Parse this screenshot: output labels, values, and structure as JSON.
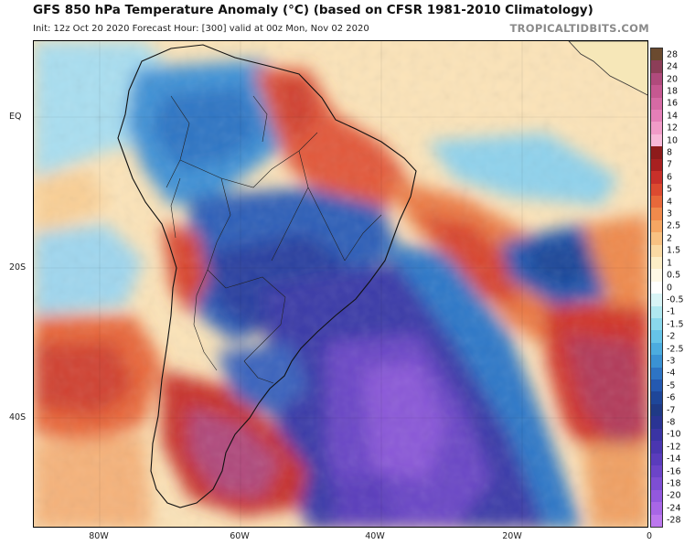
{
  "header": {
    "title": "GFS 850 hPa Temperature Anomaly (°C) (based on CFSR 1981-2010 Climatology)",
    "subtitle": "Init: 12z Oct 20 2020   Forecast Hour: [300]   valid at 00z Mon, Nov 02 2020",
    "brand": "TROPICALTIDBITS.COM"
  },
  "axes": {
    "lat_labels": [
      "EQ",
      "20S",
      "40S"
    ],
    "lon_labels": [
      "80W",
      "60W",
      "40W",
      "20W",
      "0"
    ]
  },
  "colorbar": {
    "levels": [
      "28",
      "24",
      "20",
      "18",
      "16",
      "14",
      "12",
      "10",
      "8",
      "7",
      "6",
      "5",
      "4",
      "3",
      "2.5",
      "2",
      "1.5",
      "1",
      "0.5",
      "0",
      "-0.5",
      "-1",
      "-1.5",
      "-2",
      "-2.5",
      "-3",
      "-4",
      "-5",
      "-6",
      "-7",
      "-8",
      "-10",
      "-12",
      "-14",
      "-16",
      "-18",
      "-20",
      "-24",
      "-28"
    ],
    "colors": [
      "#6b4a2f",
      "#8c3e58",
      "#b04a7c",
      "#c65891",
      "#d66aa4",
      "#e57fb8",
      "#f19bc8",
      "#f8b8d8",
      "#8e1b1b",
      "#a82020",
      "#c8302a",
      "#dc4a30",
      "#e8683a",
      "#f08a4c",
      "#f5a663",
      "#f8c182",
      "#fad9a3",
      "#fcedc6",
      "#fef8e6",
      "#ffffff",
      "#d8f4f6",
      "#b0e8f0",
      "#8ad8ec",
      "#66c4e8",
      "#4cacdf",
      "#3a92d4",
      "#2d74c4",
      "#2459b0",
      "#1e4699",
      "#1f3a86",
      "#2a3494",
      "#3a34a4",
      "#4a36b0",
      "#5a3cbc",
      "#6c44c8",
      "#7e4ed4",
      "#9358de",
      "#a866e6",
      "#bc78ee"
    ]
  },
  "map": {
    "region": "South America and South Atlantic",
    "field": "850 hPa temperature anomaly"
  }
}
